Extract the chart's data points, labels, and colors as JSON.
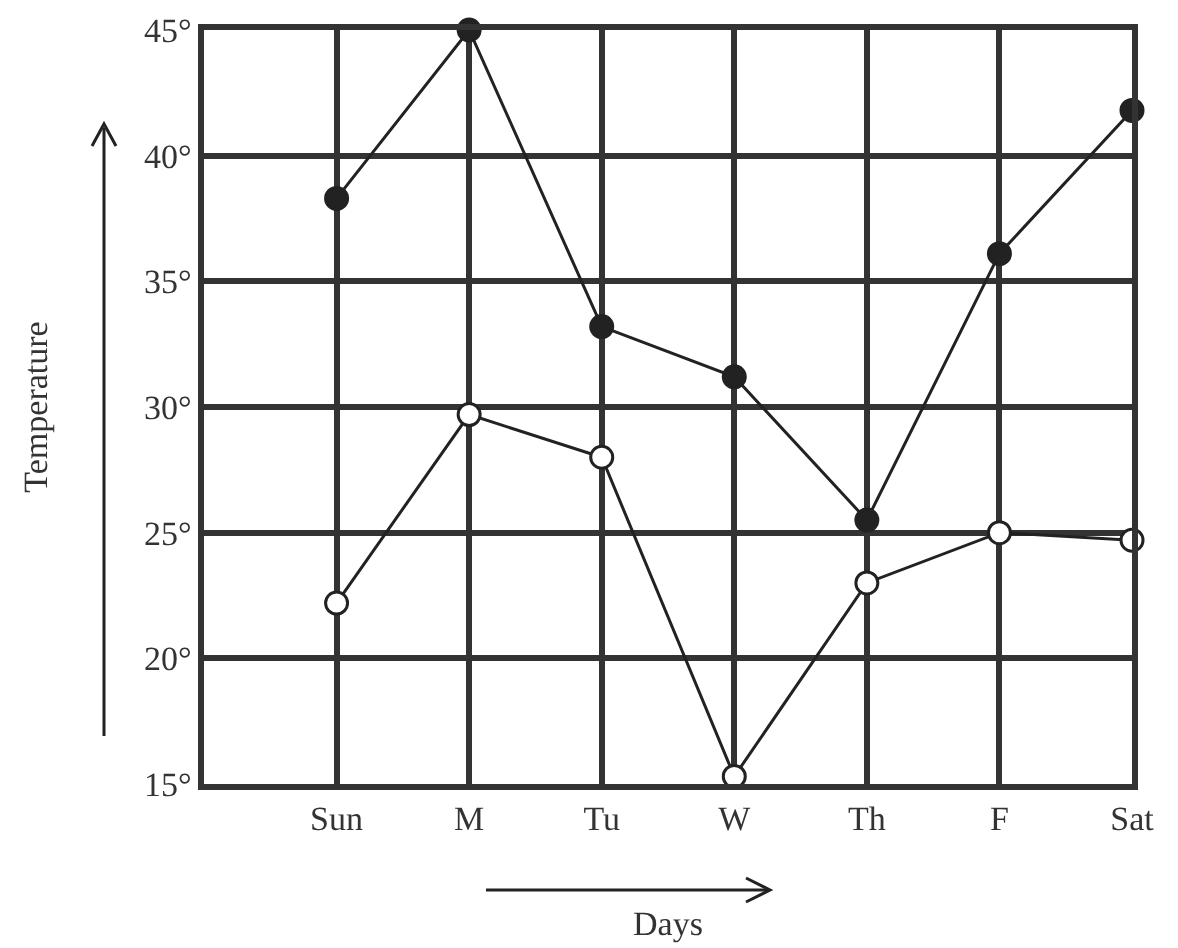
{
  "chart_data": {
    "type": "line",
    "xlabel": "Days",
    "ylabel": "Temperature",
    "categories": [
      "Sun",
      "M",
      "Tu",
      "W",
      "Th",
      "F",
      "Sat"
    ],
    "series": [
      {
        "color": "#222222",
        "marker": "circle",
        "values": [
          38.3,
          45,
          33.2,
          31.2,
          25.5,
          36.1,
          41.8
        ]
      },
      {
        "color": "#222222",
        "marker": "circle-open",
        "values": [
          22.2,
          29.7,
          28.0,
          15.3,
          23.0,
          25.0,
          24.7
        ]
      }
    ],
    "ylim": [
      15,
      45
    ],
    "yticks": [
      {
        "value": 15,
        "label": "15°"
      },
      {
        "value": 20,
        "label": "20°"
      },
      {
        "value": 25,
        "label": "25°"
      },
      {
        "value": 30,
        "label": "30°"
      },
      {
        "value": 35,
        "label": "35°"
      },
      {
        "value": 40,
        "label": "40°"
      },
      {
        "value": 45,
        "label": "45°"
      }
    ],
    "grid": true,
    "line_style": "solid"
  }
}
